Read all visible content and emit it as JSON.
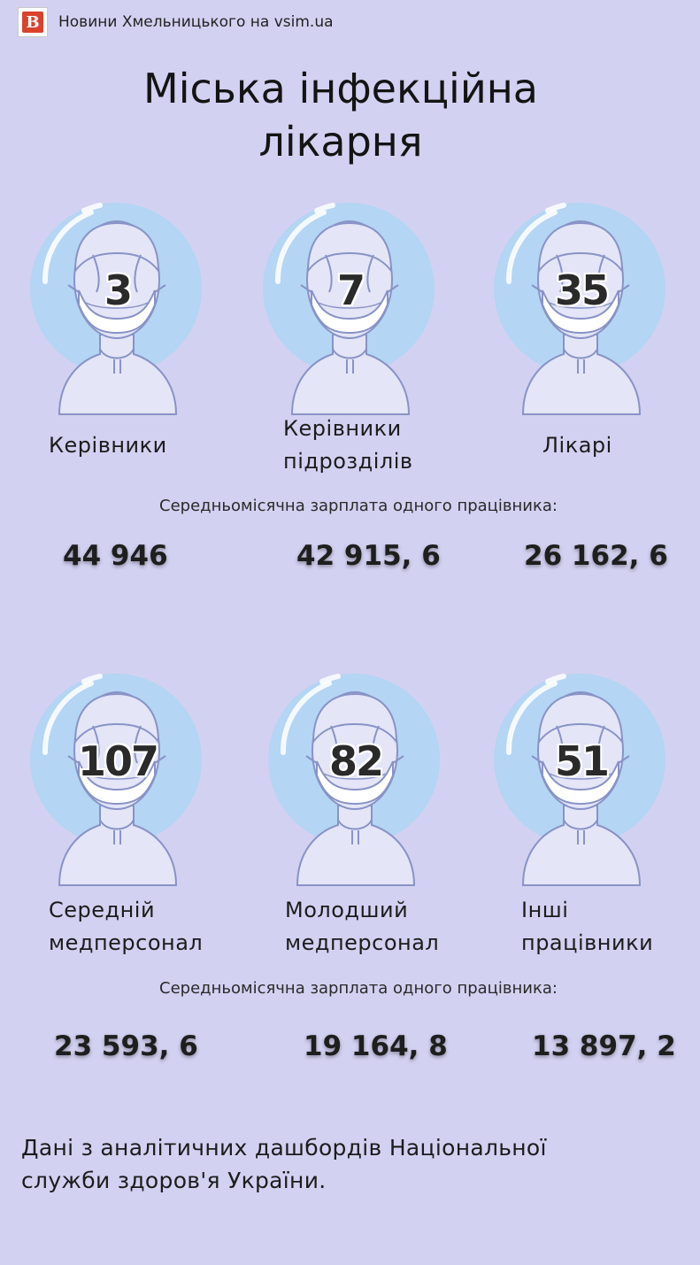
{
  "brand": {
    "logo_letter": "В",
    "text": "Новини Хмельницького на vsim.ua",
    "logo_color": "#d9432c"
  },
  "title": {
    "line1": "Міська інфекційна",
    "line2": "лікарня"
  },
  "colors": {
    "background": "#d3d1f1",
    "bubble": "#b4d5f3",
    "figure_fill": "#e4e5f7",
    "figure_stroke": "#8893c6"
  },
  "groups": [
    {
      "count": "3",
      "label_lines": [
        "Керівники"
      ],
      "salary": "44 946"
    },
    {
      "count": "7",
      "label_lines": [
        "Керівники",
        "підрозділів"
      ],
      "salary": "42 915, 6"
    },
    {
      "count": "35",
      "label_lines": [
        "Лікарі"
      ],
      "salary": "26 162, 6"
    },
    {
      "count": "107",
      "label_lines": [
        "Середній",
        "медперсонал"
      ],
      "salary": "23 593, 6"
    },
    {
      "count": "82",
      "label_lines": [
        "Молодший",
        "медперсонал"
      ],
      "salary": "19 164, 8"
    },
    {
      "count": "51",
      "label_lines": [
        "Інші",
        "працівники"
      ],
      "salary": "13 897, 2"
    }
  ],
  "salary_caption": "Середньомісячна зарплата одного працівника:",
  "footer": {
    "line1": "Дані з аналітичних дашбордів Національної",
    "line2": "служби здоров'я України."
  },
  "icons": {
    "person": "masked-person-icon"
  }
}
